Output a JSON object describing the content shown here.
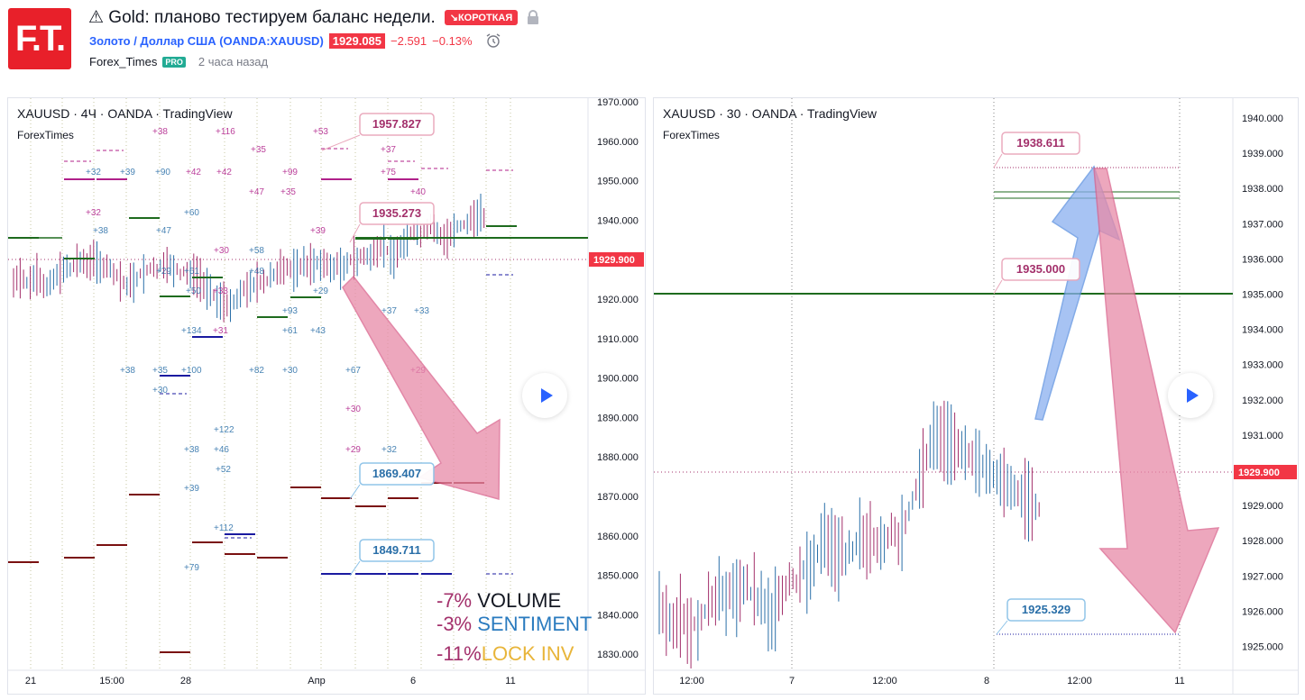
{
  "header": {
    "logo_text": "F.T.",
    "title": "⚠ Gold: планово тестируем баланс недели.",
    "direction_badge": "↘КОРОТКАЯ",
    "symbol": "Золото / Доллар США (OANDA:XAUUSD)",
    "price": "1929.085",
    "change": "−2.591",
    "change_pct": "−0.13%",
    "author": "Forex_Times",
    "author_badge": "PRO",
    "published": "2 часа назад"
  },
  "chart_left": {
    "title": "XAUUSD · 4Ч · OANDA · TradingView",
    "watermark": "ForexTimes",
    "y_ticks": [
      "1970.000",
      "1960.000",
      "1950.000",
      "1940.000",
      "1930.000",
      "1920.000",
      "1910.000",
      "1900.000",
      "1890.000",
      "1880.000",
      "1870.000",
      "1860.000",
      "1850.000",
      "1840.000",
      "1830.000"
    ],
    "x_ticks": [
      "21",
      "15:00",
      "28",
      "Апр",
      "6",
      "11"
    ],
    "current_price": "1929.900",
    "callouts": [
      "1957.827",
      "1935.273",
      "1869.407",
      "1849.711"
    ],
    "legend": [
      {
        "pct": "-7%",
        "label": "VOLUME"
      },
      {
        "pct": "-3%",
        "label": "SENTIMENT"
      },
      {
        "pct": "-11%",
        "label": "LOCK INV"
      }
    ]
  },
  "chart_right": {
    "title": "XAUUSD · 30 · OANDA · TradingView",
    "watermark": "ForexTimes",
    "y_ticks": [
      "1940.000",
      "1939.000",
      "1938.000",
      "1937.000",
      "1936.000",
      "1935.000",
      "1934.000",
      "1933.000",
      "1932.000",
      "1931.000",
      "1930.000",
      "1929.000",
      "1928.000",
      "1927.000",
      "1926.000",
      "1925.000"
    ],
    "x_ticks": [
      "12:00",
      "7",
      "12:00",
      "8",
      "12:00",
      "11"
    ],
    "current_price": "1929.900",
    "callouts": [
      "1938.611",
      "1935.000",
      "1925.329"
    ]
  },
  "colors": {
    "up": "#2a6fa8",
    "down": "#a3306b",
    "red": "#f23645",
    "level_green": "#1e6b1e",
    "level_dark": "#7a1010",
    "level_navy": "#1a1aa0",
    "arrow_pink": "#e88aa8",
    "arrow_blue": "#8ab0f0"
  }
}
